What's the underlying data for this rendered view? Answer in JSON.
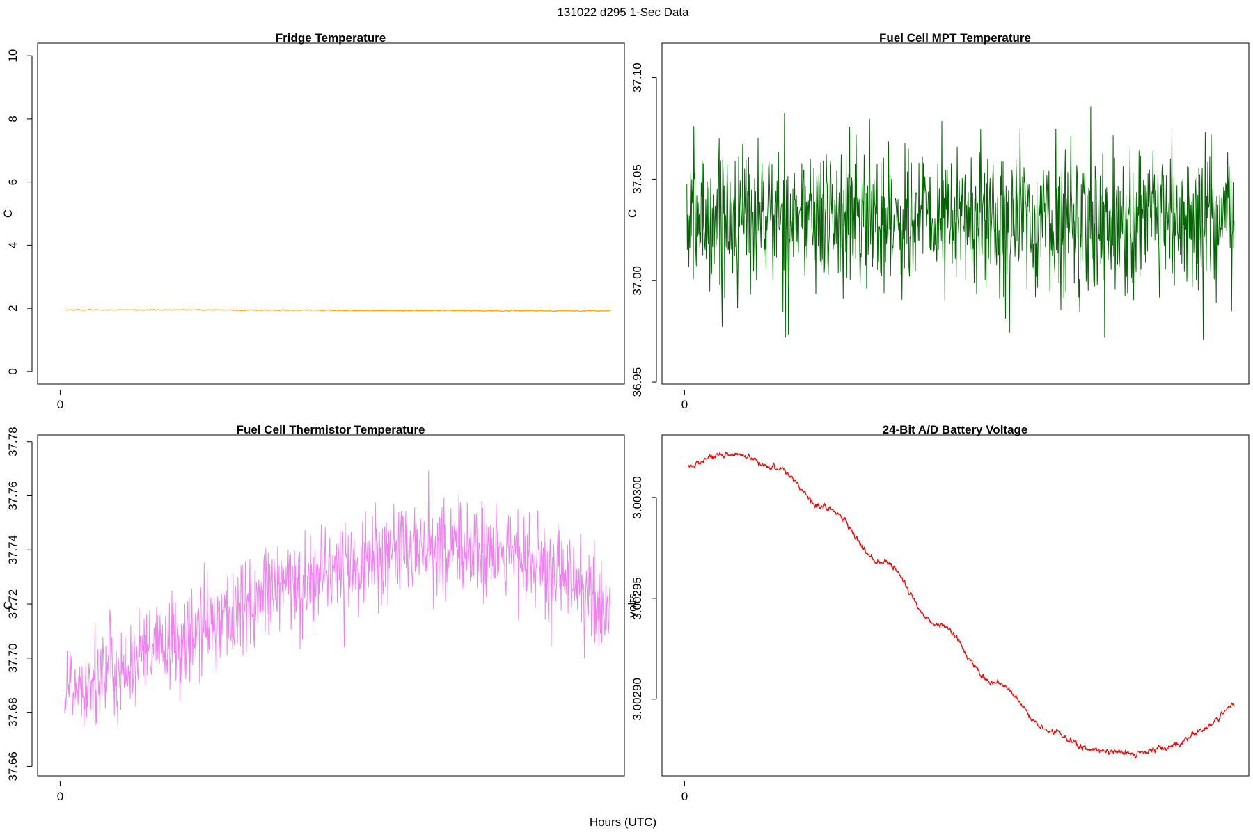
{
  "figure": {
    "title": "131022   d295   1-Sec Data",
    "xlabel": "Hours (UTC)"
  },
  "chart_data": [
    {
      "id": "fridge",
      "type": "line",
      "title": "Fridge Temperature",
      "xlabel": "Hours (UTC)",
      "ylabel": "C",
      "xlim": [
        -0.04,
        1.0
      ],
      "ylim": [
        -0.4,
        10.4
      ],
      "x_ticks": [
        0
      ],
      "x_tick_labels": [
        "0"
      ],
      "y_ticks": [
        0,
        2,
        4,
        6,
        8,
        10
      ],
      "y_tick_labels": [
        "0",
        "2",
        "4",
        "6",
        "8",
        "10"
      ],
      "color": "#FFA500",
      "style": "smooth",
      "noise": 0.006,
      "x_range": [
        0.008,
        0.975
      ],
      "series": [
        {
          "x": [
            0.008,
            0.2,
            0.4,
            0.6,
            0.8,
            0.975
          ],
          "y": [
            1.95,
            1.95,
            1.94,
            1.93,
            1.92,
            1.92
          ]
        }
      ]
    },
    {
      "id": "mpt",
      "type": "line",
      "title": "Fuel Cell MPT Temperature",
      "xlabel": "Hours (UTC)",
      "ylabel": "C",
      "xlim": [
        -0.04,
        1.0
      ],
      "ylim": [
        36.949,
        37.117
      ],
      "x_ticks": [
        0
      ],
      "x_tick_labels": [
        "0"
      ],
      "y_ticks": [
        36.95,
        37.0,
        37.05,
        37.1
      ],
      "y_tick_labels": [
        "36.95",
        "37.00",
        "37.05",
        "37.10"
      ],
      "color": "#006400",
      "style": "noisy",
      "noise": 0.018,
      "x_range": [
        0.004,
        0.974
      ],
      "series": [
        {
          "x": [
            0.004,
            0.1,
            0.3,
            0.5,
            0.7,
            0.9,
            0.974
          ],
          "y": [
            37.03,
            37.032,
            37.031,
            37.03,
            37.029,
            37.028,
            37.028
          ]
        }
      ]
    },
    {
      "id": "thermistor",
      "type": "line",
      "title": "Fuel Cell Thermistor Temperature",
      "xlabel": "Hours (UTC)",
      "ylabel": "C",
      "xlim": [
        -0.04,
        1.0
      ],
      "ylim": [
        37.6565,
        37.7825
      ],
      "x_ticks": [
        0
      ],
      "x_tick_labels": [
        "0"
      ],
      "y_ticks": [
        37.66,
        37.68,
        37.7,
        37.72,
        37.74,
        37.76,
        37.78
      ],
      "y_tick_labels": [
        "37.66",
        "37.68",
        "37.70",
        "37.72",
        "37.74",
        "37.76",
        "37.78"
      ],
      "color": "#EE82EE",
      "style": "noisy",
      "noise": 0.009,
      "x_range": [
        0.008,
        0.975
      ],
      "series": [
        {
          "x": [
            0.008,
            0.1,
            0.2,
            0.3,
            0.4,
            0.5,
            0.6,
            0.7,
            0.8,
            0.9,
            0.975
          ],
          "y": [
            37.69,
            37.695,
            37.705,
            37.716,
            37.726,
            37.734,
            37.739,
            37.741,
            37.738,
            37.728,
            37.717
          ]
        }
      ]
    },
    {
      "id": "battery",
      "type": "line",
      "title": "24-Bit A/D Battery Voltage",
      "xlabel": "Hours (UTC)",
      "ylabel": "volts",
      "xlim": [
        -0.04,
        1.0
      ],
      "ylim": [
        3.002862,
        3.003031
      ],
      "x_ticks": [
        0
      ],
      "x_tick_labels": [
        "0"
      ],
      "y_ticks": [
        3.0029,
        3.00295,
        3.003
      ],
      "y_tick_labels": [
        "3.00290",
        "3.00295",
        "3.00300"
      ],
      "color": "#FF0000",
      "style": "smooth",
      "noise": 6e-07,
      "x_range": [
        0.006,
        0.974
      ],
      "series": [
        {
          "x": [
            0.006,
            0.05,
            0.09,
            0.16,
            0.25,
            0.35,
            0.45,
            0.55,
            0.65,
            0.72,
            0.8,
            0.86,
            0.92,
            0.974
          ],
          "y": [
            3.003015,
            3.00302,
            3.003021,
            3.003015,
            3.002995,
            3.002968,
            3.002937,
            3.002908,
            3.002884,
            3.002875,
            3.002873,
            3.002876,
            3.002885,
            3.002897
          ]
        }
      ]
    }
  ]
}
